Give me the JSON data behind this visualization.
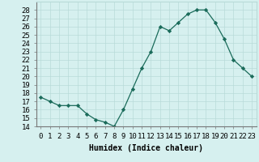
{
  "x": [
    0,
    1,
    2,
    3,
    4,
    5,
    6,
    7,
    8,
    9,
    10,
    11,
    12,
    13,
    14,
    15,
    16,
    17,
    18,
    19,
    20,
    21,
    22,
    23
  ],
  "y": [
    17.5,
    17.0,
    16.5,
    16.5,
    16.5,
    15.5,
    14.8,
    14.5,
    14.0,
    16.0,
    18.5,
    21.0,
    23.0,
    26.0,
    25.5,
    26.5,
    27.5,
    28.0,
    28.0,
    26.5,
    24.5,
    22.0,
    21.0,
    20.0
  ],
  "line_color": "#1a6b5a",
  "marker_color": "#1a6b5a",
  "bg_color": "#d6f0ef",
  "grid_color": "#b8dbd9",
  "xlabel": "Humidex (Indice chaleur)",
  "ylim": [
    14,
    29
  ],
  "xlim": [
    -0.5,
    23.5
  ],
  "yticks": [
    14,
    15,
    16,
    17,
    18,
    19,
    20,
    21,
    22,
    23,
    24,
    25,
    26,
    27,
    28
  ],
  "xticks": [
    0,
    1,
    2,
    3,
    4,
    5,
    6,
    7,
    8,
    9,
    10,
    11,
    12,
    13,
    14,
    15,
    16,
    17,
    18,
    19,
    20,
    21,
    22,
    23
  ],
  "xtick_labels": [
    "0",
    "1",
    "2",
    "3",
    "4",
    "5",
    "6",
    "7",
    "8",
    "9",
    "10",
    "11",
    "12",
    "13",
    "14",
    "15",
    "16",
    "17",
    "18",
    "19",
    "20",
    "21",
    "22",
    "23"
  ],
  "axis_fontsize": 7,
  "tick_fontsize": 6.5
}
